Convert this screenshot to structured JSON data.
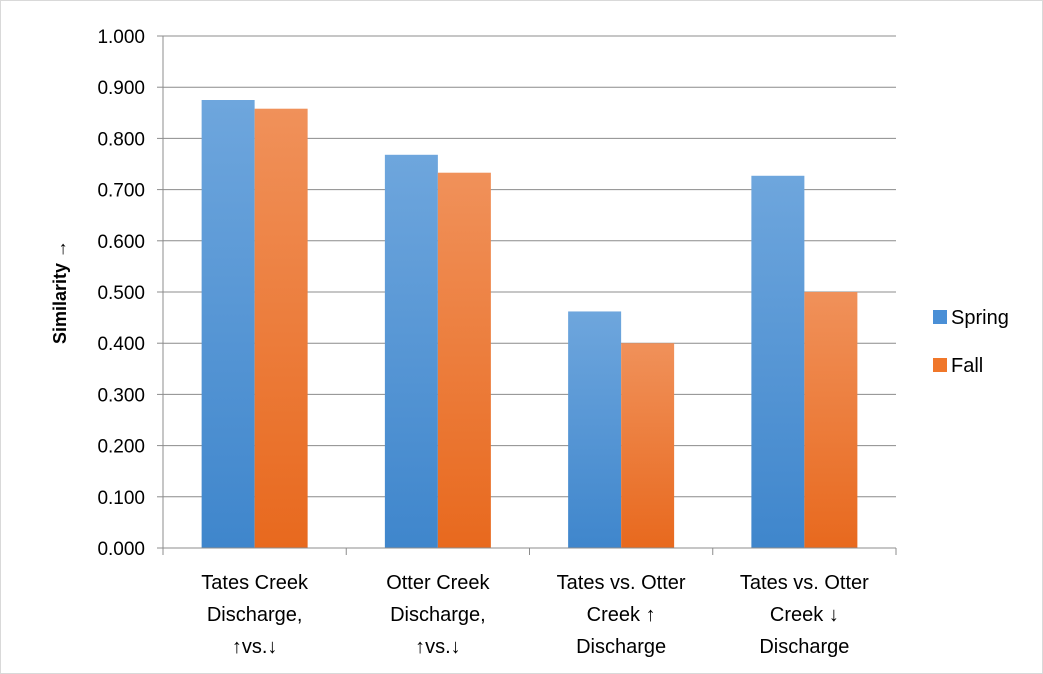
{
  "chart_data": {
    "type": "bar",
    "title": "",
    "xlabel": "",
    "ylabel": "Similarity →",
    "ylim": [
      0,
      1
    ],
    "y_tick_step": 0.1,
    "y_tick_format_decimals": 3,
    "grid": true,
    "legend_position": "right",
    "categories": [
      [
        "Tates Creek",
        "Discharge,",
        "↑vs.↓"
      ],
      [
        "Otter Creek",
        "Discharge,",
        "↑vs.↓"
      ],
      [
        "Tates vs. Otter",
        "Creek ↑",
        "Discharge"
      ],
      [
        "Tates vs. Otter",
        "Creek ↓",
        "Discharge"
      ]
    ],
    "series": [
      {
        "name": "Spring",
        "color": "#4a8fd6",
        "values": [
          0.875,
          0.768,
          0.462,
          0.727
        ]
      },
      {
        "name": "Fall",
        "color": "#f0772a",
        "values": [
          0.858,
          0.733,
          0.4,
          0.5
        ]
      }
    ]
  }
}
